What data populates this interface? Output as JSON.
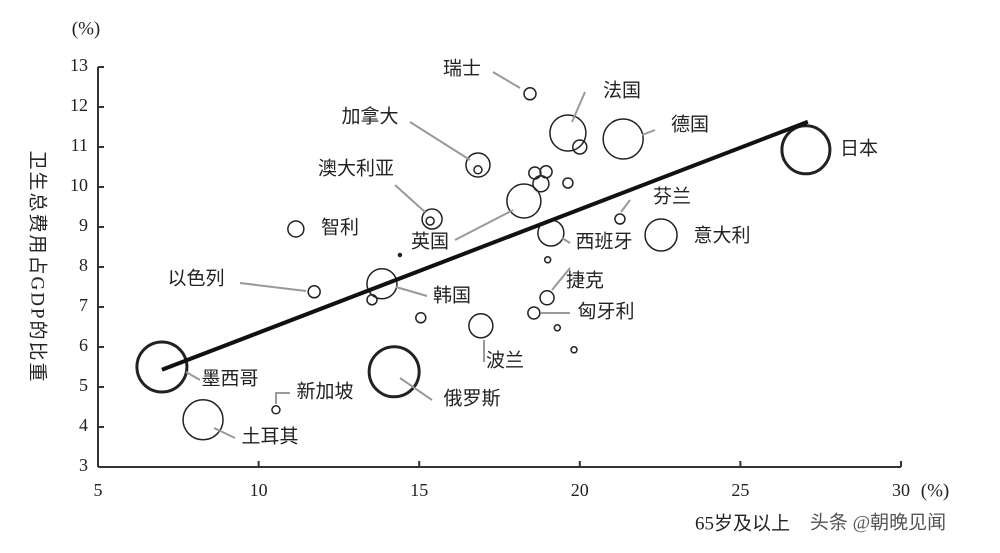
{
  "chart_data": {
    "type": "scatter",
    "y_unit": "(%)",
    "x_unit": "(%)",
    "y_label": "卫生总费用占GDP的比重",
    "x_label": "65岁及以上",
    "watermark": "头条 @朝晚见闻",
    "xlim": [
      5,
      30
    ],
    "xticks": [
      5,
      10,
      15,
      20,
      25,
      30
    ],
    "ylim": [
      3,
      13
    ],
    "yticks": [
      3,
      4,
      5,
      6,
      7,
      8,
      9,
      10,
      11,
      12,
      13
    ],
    "color": "#222",
    "series": [
      {
        "labels": [
          "日本",
          "瑞士",
          "法国",
          null,
          "德国",
          "加拿大",
          null,
          null,
          null,
          null,
          null,
          "英国",
          "澳大利亚",
          null,
          "智利",
          "西班牙",
          "芬兰",
          "意大利",
          "以色列",
          "韩国",
          null,
          null,
          null,
          "捷克",
          "匈牙利",
          null,
          null,
          "波兰",
          null,
          "墨西哥",
          "俄罗斯",
          "新加坡",
          "土耳其"
        ],
        "x": [
          27.04,
          18.45,
          19.63,
          20.0,
          21.35,
          16.83,
          16.83,
          18.6,
          18.95,
          18.79,
          19.63,
          18.26,
          15.4,
          15.34,
          11.16,
          19.1,
          21.25,
          22.53,
          11.73,
          13.84,
          13.53,
          14.4,
          19.0,
          18.98,
          18.57,
          19.3,
          15.05,
          16.92,
          19.82,
          6.99,
          14.22,
          10.54,
          8.27
        ],
        "values": [
          10.93,
          12.33,
          11.35,
          11.0,
          11.2,
          10.55,
          10.43,
          10.35,
          10.38,
          10.08,
          10.1,
          9.65,
          9.2,
          9.15,
          8.95,
          8.85,
          9.2,
          8.8,
          7.38,
          7.58,
          7.18,
          8.3,
          8.18,
          7.23,
          6.85,
          6.48,
          6.73,
          6.53,
          5.93,
          5.5,
          5.38,
          4.43,
          4.18
        ],
        "sizes": [
          24,
          6,
          18,
          7,
          20,
          12,
          4,
          6,
          6,
          8,
          5,
          17,
          10,
          4,
          8,
          13,
          5,
          16,
          6,
          15,
          5,
          1.5,
          3,
          7,
          6,
          3,
          5,
          12,
          3,
          25,
          25,
          4,
          20
        ]
      }
    ],
    "trendline": {
      "x": [
        6.99,
        27.1
      ],
      "y": [
        5.43,
        11.63
      ]
    }
  }
}
